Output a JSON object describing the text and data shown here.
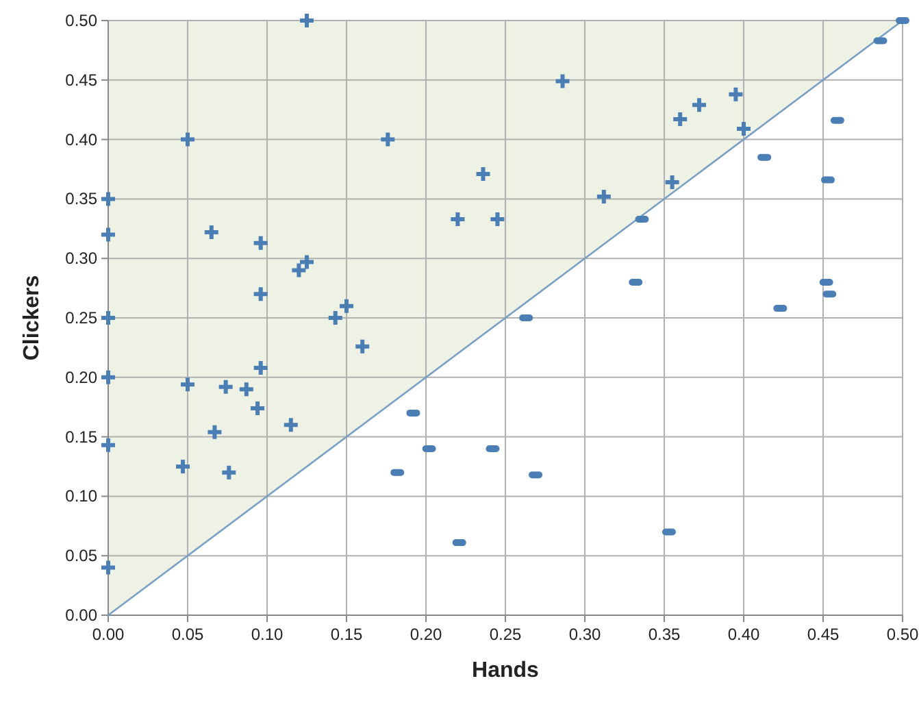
{
  "chart_data": {
    "type": "scatter",
    "xlabel": "Hands",
    "ylabel": "Clickers",
    "xlim": [
      0,
      0.5
    ],
    "ylim": [
      0,
      0.5
    ],
    "xticks": [
      {
        "value": 0,
        "label": "0.00"
      },
      {
        "value": 0.05,
        "label": "0.05"
      },
      {
        "value": 0.1,
        "label": "0.10"
      },
      {
        "value": 0.15,
        "label": "0.15"
      },
      {
        "value": 0.2,
        "label": "0.20"
      },
      {
        "value": 0.25,
        "label": "0.25"
      },
      {
        "value": 0.3,
        "label": "0.30"
      },
      {
        "value": 0.35,
        "label": "0.35"
      },
      {
        "value": 0.4,
        "label": "0.40"
      },
      {
        "value": 0.45,
        "label": "0.45"
      },
      {
        "value": 0.5,
        "label": "0.50"
      }
    ],
    "yticks": [
      {
        "value": 0,
        "label": "0.00"
      },
      {
        "value": 0.05,
        "label": "0.05"
      },
      {
        "value": 0.1,
        "label": "0.10"
      },
      {
        "value": 0.15,
        "label": "0.15"
      },
      {
        "value": 0.2,
        "label": "0.20"
      },
      {
        "value": 0.25,
        "label": "0.25"
      },
      {
        "value": 0.3,
        "label": "0.30"
      },
      {
        "value": 0.35,
        "label": "0.35"
      },
      {
        "value": 0.4,
        "label": "0.40"
      },
      {
        "value": 0.45,
        "label": "0.45"
      },
      {
        "value": 0.5,
        "label": "0.50"
      }
    ],
    "grid": true,
    "series": [
      {
        "type": "line",
        "color": "#7a9fc4",
        "line_style": "solid",
        "x": [
          0,
          0.5
        ],
        "values": [
          0,
          0.5
        ],
        "lower": [
          0,
          0.5
        ],
        "upper": [
          0.5,
          0.5
        ]
      },
      {
        "color": "#4a7eb4",
        "marker": "cross",
        "x": [
          0,
          0,
          0,
          0,
          0,
          0,
          0.05,
          0.05,
          0.047,
          0.065,
          0.067,
          0.074,
          0.076,
          0.087,
          0.094,
          0.096,
          0.096,
          0.096,
          0.115,
          0.12,
          0.125,
          0.125,
          0.143,
          0.15,
          0.16,
          0.176,
          0.22,
          0.236,
          0.245,
          0.286,
          0.312,
          0.355,
          0.36,
          0.372,
          0.395,
          0.4
        ],
        "values": [
          0.35,
          0.32,
          0.25,
          0.2,
          0.143,
          0.04,
          0.4,
          0.194,
          0.125,
          0.322,
          0.154,
          0.192,
          0.12,
          0.19,
          0.174,
          0.313,
          0.27,
          0.208,
          0.16,
          0.29,
          0.297,
          0.5,
          0.25,
          0.26,
          0.226,
          0.4,
          0.333,
          0.371,
          0.333,
          0.449,
          0.352,
          0.364,
          0.417,
          0.429,
          0.438,
          0.409
        ]
      },
      {
        "color": "#4a7eb4",
        "marker": "square",
        "x": [
          0.182,
          0.192,
          0.202,
          0.221,
          0.242,
          0.263,
          0.269,
          0.332,
          0.336,
          0.353,
          0.413,
          0.423,
          0.452,
          0.453,
          0.454,
          0.459,
          0.486,
          0.5
        ],
        "values": [
          0.12,
          0.17,
          0.14,
          0.061,
          0.14,
          0.25,
          0.118,
          0.28,
          0.333,
          0.07,
          0.385,
          0.258,
          0.28,
          0.366,
          0.27,
          0.416,
          0.483,
          0.5
        ]
      }
    ]
  }
}
